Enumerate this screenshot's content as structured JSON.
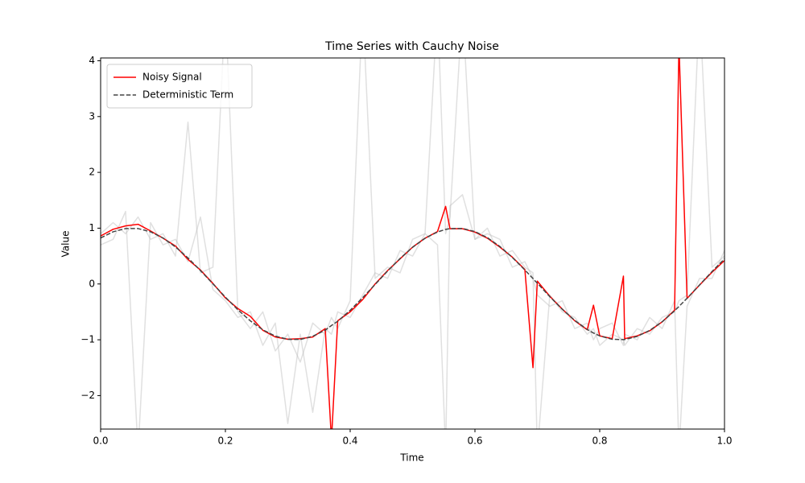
{
  "chart_data": {
    "type": "line",
    "title": "Time Series with Cauchy Noise",
    "xlabel": "Time",
    "ylabel": "Value",
    "x": [
      0,
      0.02,
      0.04,
      0.06,
      0.08,
      0.1,
      0.12,
      0.14,
      0.16,
      0.18,
      0.2,
      0.22,
      0.24,
      0.26,
      0.28,
      0.3,
      0.32,
      0.34,
      0.36,
      0.37,
      0.38,
      0.4,
      0.42,
      0.44,
      0.46,
      0.48,
      0.5,
      0.52,
      0.54,
      0.553,
      0.56,
      0.58,
      0.6,
      0.62,
      0.64,
      0.66,
      0.68,
      0.693,
      0.7,
      0.72,
      0.74,
      0.76,
      0.78,
      0.79,
      0.8,
      0.82,
      0.838,
      0.84,
      0.86,
      0.88,
      0.9,
      0.92,
      0.927,
      0.94,
      0.96,
      0.98,
      1
    ],
    "series": [
      {
        "color": "#bbbbbb",
        "opacity": 0.45,
        "values": [
          0.9,
          1.1,
          0.9,
          1.2,
          0.8,
          0.9,
          0.5,
          2.9,
          0.2,
          0.3,
          5,
          -0.5,
          -0.8,
          -0.5,
          -1.2,
          -0.9,
          -1.4,
          -0.7,
          -0.9,
          -0.6,
          -0.8,
          -0.3,
          5,
          0.1,
          0.3,
          0.2,
          0.8,
          0.9,
          5,
          0.9,
          1.2,
          5,
          0.8,
          1.0,
          0.5,
          0.6,
          0.3,
          0.2,
          -3,
          -0.2,
          -0.5,
          -0.6,
          -0.9,
          -0.8,
          -1.1,
          -0.9,
          -1.0,
          -1.1,
          -0.8,
          -0.9,
          -0.6,
          -0.5,
          -0.3,
          -0.2,
          5,
          0.3,
          0.5
        ]
      },
      {
        "color": "#bbbbbb",
        "opacity": 0.45,
        "values": [
          0.7,
          0.8,
          1.3,
          -3,
          1.1,
          0.7,
          0.8,
          0.4,
          1.2,
          -0.1,
          -0.3,
          -0.6,
          -0.5,
          -1.1,
          -0.7,
          -2.5,
          -0.9,
          -2.3,
          -0.8,
          -0.9,
          -0.5,
          -0.6,
          -0.2,
          0.2,
          0.1,
          0.6,
          0.5,
          0.9,
          0.7,
          -3,
          1.4,
          1.6,
          0.8,
          0.9,
          0.8,
          0.3,
          0.4,
          0.1,
          -0.2,
          -0.4,
          -0.3,
          -0.8,
          -0.7,
          -1.0,
          -0.8,
          -0.7,
          -1.1,
          -0.9,
          -1.0,
          -0.6,
          -0.8,
          -0.3,
          -3,
          -0.4,
          0.1,
          0.1,
          0.6
        ]
      },
      {
        "name": "Noisy Signal",
        "color": "#ff0000",
        "values": [
          0.86,
          0.98,
          1.04,
          1.07,
          0.95,
          0.82,
          0.68,
          0.44,
          0.25,
          0.01,
          -0.25,
          -0.44,
          -0.58,
          -0.83,
          -0.95,
          -0.99,
          -0.98,
          -0.95,
          -0.8,
          -2.8,
          -0.66,
          -0.5,
          -0.28,
          0.0,
          0.24,
          0.45,
          0.66,
          0.82,
          0.94,
          1.39,
          0.99,
          0.99,
          0.93,
          0.82,
          0.66,
          0.48,
          0.26,
          -1.5,
          0.05,
          -0.22,
          -0.45,
          -0.66,
          -0.82,
          -0.38,
          -0.93,
          -0.98,
          0.14,
          -0.98,
          -0.93,
          -0.84,
          -0.68,
          -0.47,
          4.3,
          -0.26,
          -0.02,
          0.21,
          0.42
        ]
      },
      {
        "name": "Deterministic Term",
        "color": "#444444",
        "dash": "dashed",
        "values": [
          0.824,
          0.935,
          0.993,
          0.993,
          0.935,
          0.824,
          0.664,
          0.466,
          0.241,
          0.003,
          -0.237,
          -0.462,
          -0.661,
          -0.822,
          -0.934,
          -0.992,
          -0.994,
          -0.937,
          -0.827,
          -0.744,
          -0.668,
          -0.472,
          -0.246,
          -0.008,
          0.232,
          0.457,
          0.657,
          0.819,
          0.932,
          0.978,
          0.992,
          0.994,
          0.939,
          0.829,
          0.671,
          0.475,
          0.251,
          0.097,
          0.013,
          -0.227,
          -0.453,
          -0.653,
          -0.816,
          -0.879,
          -0.93,
          -0.991,
          -0.997,
          -0.995,
          -0.94,
          -0.833,
          -0.678,
          -0.48,
          -0.403,
          -0.256,
          -0.018,
          0.223,
          0.449
        ]
      }
    ],
    "xlim": [
      0,
      1
    ],
    "xticks": [
      {
        "value": 0,
        "label": "0.0"
      },
      0.2,
      0.4,
      0.6,
      0.8,
      {
        "value": 1,
        "label": "1.0"
      }
    ],
    "ylim": [
      -2.6,
      4.05
    ],
    "yticks": [
      {
        "value": -2,
        "label": "−2"
      },
      {
        "value": -1,
        "label": "−1"
      },
      0,
      1,
      2,
      3,
      4
    ],
    "legend": "upper left",
    "grid": false
  }
}
